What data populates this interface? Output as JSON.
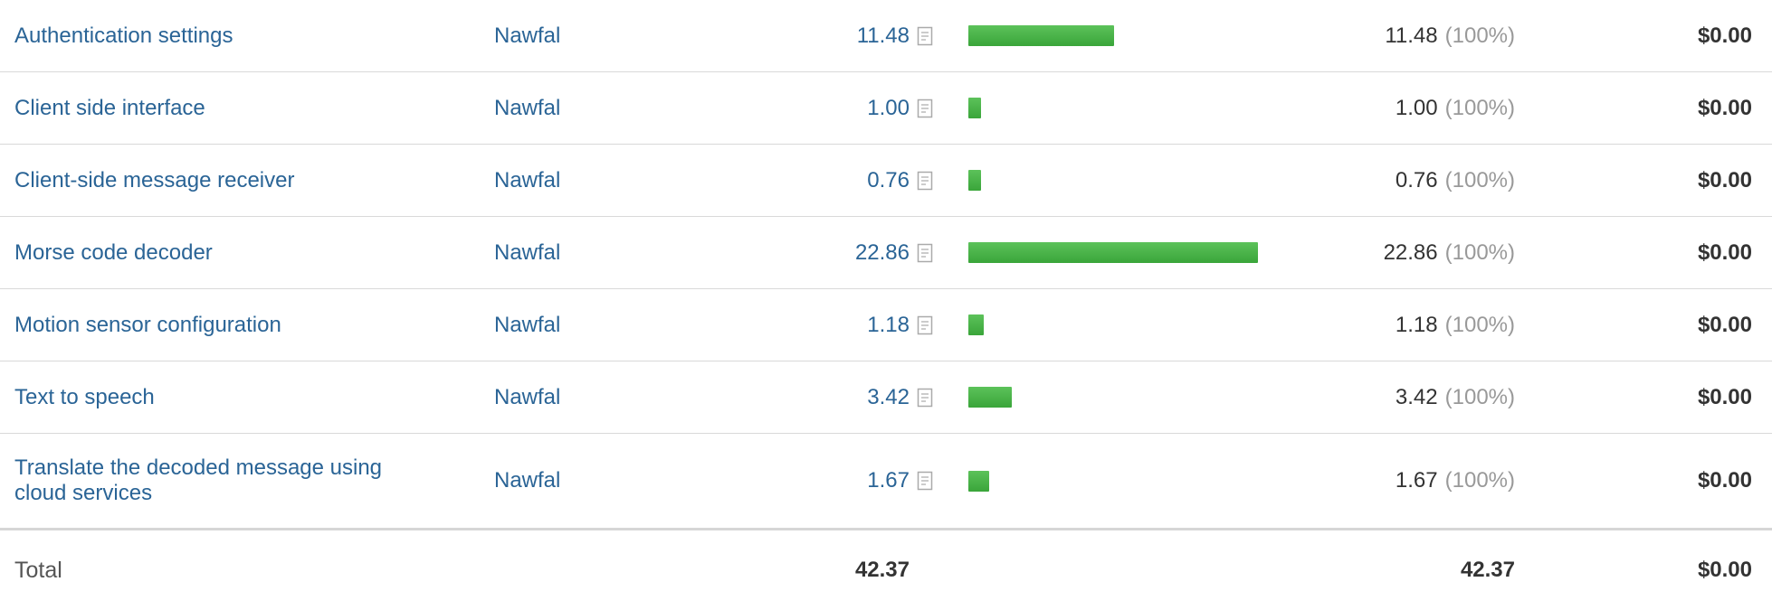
{
  "rows": [
    {
      "task": "Authentication settings",
      "user": "Nawfal",
      "hours": "11.48",
      "billable": "11.48",
      "pct": "(100%)",
      "amount": "$0.00",
      "bar_fraction": 0.502
    },
    {
      "task": "Client side interface",
      "user": "Nawfal",
      "hours": "1.00",
      "billable": "1.00",
      "pct": "(100%)",
      "amount": "$0.00",
      "bar_fraction": 0.044
    },
    {
      "task": "Client-side message receiver",
      "user": "Nawfal",
      "hours": "0.76",
      "billable": "0.76",
      "pct": "(100%)",
      "amount": "$0.00",
      "bar_fraction": 0.033
    },
    {
      "task": "Morse code decoder",
      "user": "Nawfal",
      "hours": "22.86",
      "billable": "22.86",
      "pct": "(100%)",
      "amount": "$0.00",
      "bar_fraction": 1.0
    },
    {
      "task": "Motion sensor configuration",
      "user": "Nawfal",
      "hours": "1.18",
      "billable": "1.18",
      "pct": "(100%)",
      "amount": "$0.00",
      "bar_fraction": 0.052
    },
    {
      "task": "Text to speech",
      "user": "Nawfal",
      "hours": "3.42",
      "billable": "3.42",
      "pct": "(100%)",
      "amount": "$0.00",
      "bar_fraction": 0.15
    },
    {
      "task": "Translate the decoded message using cloud services",
      "user": "Nawfal",
      "hours": "1.67",
      "billable": "1.67",
      "pct": "(100%)",
      "amount": "$0.00",
      "bar_fraction": 0.073
    }
  ],
  "total": {
    "label": "Total",
    "hours": "42.37",
    "billable": "42.37",
    "amount": "$0.00"
  },
  "colors": {
    "link": "#2a6496",
    "bar": "#4cb74a",
    "muted": "#999999"
  },
  "icons": {
    "notes": "notes-icon"
  }
}
